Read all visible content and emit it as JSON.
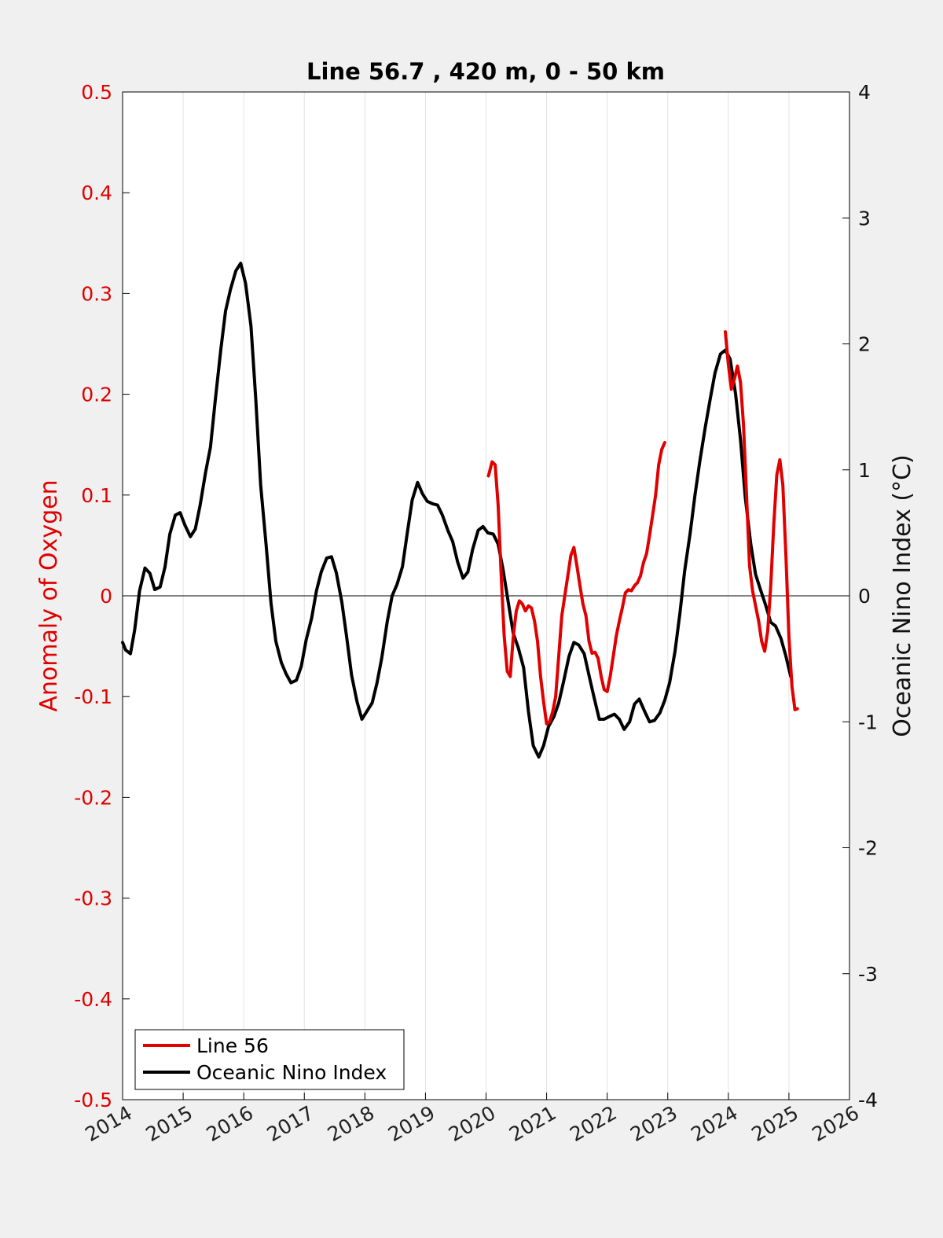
{
  "chart_data": {
    "type": "line",
    "title": "Line 56.7 , 420 m, 0 - 50 km",
    "xlim": [
      2014,
      2026
    ],
    "x_ticks": [
      "2014",
      "2015",
      "2016",
      "2017",
      "2018",
      "2019",
      "2020",
      "2021",
      "2022",
      "2023",
      "2024",
      "2025",
      "2026"
    ],
    "y_left": {
      "label": "Anomaly of Oxygen",
      "lim": [
        -0.5,
        0.5
      ],
      "ticks": [
        "-0.5",
        "-0.4",
        "-0.3",
        "-0.2",
        "-0.1",
        "0",
        "0.1",
        "0.2",
        "0.3",
        "0.4",
        "0.5"
      ],
      "color": "#e00000"
    },
    "y_right": {
      "label": "Oceanic Nino Index (°C)",
      "lim": [
        -4,
        4
      ],
      "ticks": [
        "-4",
        "-3",
        "-2",
        "-1",
        "0",
        "1",
        "2",
        "3",
        "4"
      ],
      "color": "#111111"
    },
    "grid": "vertical",
    "zero_line": true,
    "legend": {
      "placement": "bottom-left",
      "entries": [
        "Line 56",
        "Oceanic Nino Index"
      ]
    },
    "series": [
      {
        "name": "Oceanic Nino Index",
        "axis": "right",
        "color": "#000000",
        "segments": [
          [
            [
              2014.0,
              -0.37
            ],
            [
              2014.05,
              -0.43
            ],
            [
              2014.13,
              -0.46
            ],
            [
              2014.2,
              -0.27
            ],
            [
              2014.28,
              0.04
            ],
            [
              2014.37,
              0.22
            ],
            [
              2014.45,
              0.18
            ],
            [
              2014.53,
              0.05
            ],
            [
              2014.62,
              0.07
            ],
            [
              2014.7,
              0.23
            ],
            [
              2014.78,
              0.49
            ],
            [
              2014.87,
              0.64
            ],
            [
              2014.95,
              0.66
            ],
            [
              2015.03,
              0.56
            ],
            [
              2015.12,
              0.47
            ],
            [
              2015.2,
              0.53
            ],
            [
              2015.28,
              0.72
            ],
            [
              2015.37,
              0.98
            ],
            [
              2015.45,
              1.18
            ],
            [
              2015.53,
              1.55
            ],
            [
              2015.62,
              1.95
            ],
            [
              2015.7,
              2.26
            ],
            [
              2015.78,
              2.43
            ],
            [
              2015.87,
              2.58
            ],
            [
              2015.95,
              2.64
            ],
            [
              2016.03,
              2.48
            ],
            [
              2016.12,
              2.14
            ],
            [
              2016.2,
              1.55
            ],
            [
              2016.28,
              0.88
            ],
            [
              2016.37,
              0.4
            ],
            [
              2016.45,
              -0.06
            ],
            [
              2016.53,
              -0.36
            ],
            [
              2016.62,
              -0.53
            ],
            [
              2016.7,
              -0.62
            ],
            [
              2016.78,
              -0.69
            ],
            [
              2016.87,
              -0.67
            ],
            [
              2016.95,
              -0.56
            ],
            [
              2017.03,
              -0.35
            ],
            [
              2017.12,
              -0.18
            ],
            [
              2017.2,
              0.04
            ],
            [
              2017.28,
              0.19
            ],
            [
              2017.37,
              0.3
            ],
            [
              2017.45,
              0.31
            ],
            [
              2017.53,
              0.18
            ],
            [
              2017.62,
              -0.05
            ],
            [
              2017.7,
              -0.33
            ],
            [
              2017.78,
              -0.63
            ],
            [
              2017.87,
              -0.84
            ],
            [
              2017.95,
              -0.98
            ],
            [
              2018.03,
              -0.92
            ],
            [
              2018.12,
              -0.85
            ],
            [
              2018.2,
              -0.69
            ],
            [
              2018.28,
              -0.49
            ],
            [
              2018.37,
              -0.2
            ],
            [
              2018.45,
              0.0
            ],
            [
              2018.53,
              0.09
            ],
            [
              2018.62,
              0.23
            ],
            [
              2018.7,
              0.5
            ],
            [
              2018.78,
              0.76
            ],
            [
              2018.87,
              0.9
            ],
            [
              2018.95,
              0.81
            ],
            [
              2019.03,
              0.75
            ],
            [
              2019.12,
              0.73
            ],
            [
              2019.2,
              0.72
            ],
            [
              2019.28,
              0.64
            ],
            [
              2019.37,
              0.52
            ],
            [
              2019.45,
              0.43
            ],
            [
              2019.53,
              0.27
            ],
            [
              2019.62,
              0.14
            ],
            [
              2019.7,
              0.19
            ],
            [
              2019.78,
              0.37
            ],
            [
              2019.87,
              0.52
            ],
            [
              2019.95,
              0.55
            ],
            [
              2020.03,
              0.5
            ],
            [
              2020.12,
              0.49
            ],
            [
              2020.2,
              0.41
            ],
            [
              2020.28,
              0.21
            ],
            [
              2020.37,
              -0.06
            ],
            [
              2020.45,
              -0.3
            ],
            [
              2020.53,
              -0.41
            ],
            [
              2020.62,
              -0.57
            ],
            [
              2020.7,
              -0.92
            ],
            [
              2020.78,
              -1.19
            ],
            [
              2020.87,
              -1.28
            ],
            [
              2020.95,
              -1.19
            ],
            [
              2021.03,
              -1.04
            ],
            [
              2021.12,
              -0.96
            ],
            [
              2021.2,
              -0.85
            ],
            [
              2021.28,
              -0.68
            ],
            [
              2021.37,
              -0.48
            ],
            [
              2021.45,
              -0.37
            ],
            [
              2021.53,
              -0.39
            ],
            [
              2021.62,
              -0.46
            ],
            [
              2021.7,
              -0.63
            ],
            [
              2021.78,
              -0.8
            ],
            [
              2021.87,
              -0.98
            ],
            [
              2021.95,
              -0.98
            ],
            [
              2022.03,
              -0.96
            ],
            [
              2022.12,
              -0.94
            ],
            [
              2022.2,
              -0.98
            ],
            [
              2022.28,
              -1.06
            ],
            [
              2022.37,
              -1.0
            ],
            [
              2022.45,
              -0.86
            ],
            [
              2022.53,
              -0.82
            ],
            [
              2022.62,
              -0.92
            ],
            [
              2022.7,
              -1.0
            ],
            [
              2022.78,
              -0.99
            ],
            [
              2022.87,
              -0.93
            ],
            [
              2022.95,
              -0.83
            ],
            [
              2023.03,
              -0.69
            ],
            [
              2023.12,
              -0.44
            ],
            [
              2023.2,
              -0.14
            ],
            [
              2023.28,
              0.2
            ],
            [
              2023.37,
              0.5
            ],
            [
              2023.45,
              0.8
            ],
            [
              2023.53,
              1.07
            ],
            [
              2023.62,
              1.34
            ],
            [
              2023.7,
              1.56
            ],
            [
              2023.78,
              1.77
            ],
            [
              2023.87,
              1.92
            ],
            [
              2023.95,
              1.95
            ],
            [
              2024.03,
              1.88
            ],
            [
              2024.12,
              1.6
            ],
            [
              2024.2,
              1.24
            ],
            [
              2024.28,
              0.78
            ],
            [
              2024.37,
              0.41
            ],
            [
              2024.45,
              0.17
            ],
            [
              2024.53,
              0.05
            ],
            [
              2024.62,
              -0.08
            ],
            [
              2024.7,
              -0.21
            ],
            [
              2024.78,
              -0.24
            ],
            [
              2024.87,
              -0.34
            ],
            [
              2024.95,
              -0.48
            ],
            [
              2025.03,
              -0.64
            ]
          ]
        ]
      },
      {
        "name": "Line 56",
        "axis": "left",
        "color": "#e00000",
        "segments": [
          [
            [
              2020.04,
              0.119
            ],
            [
              2020.1,
              0.133
            ],
            [
              2020.15,
              0.13
            ],
            [
              2020.2,
              0.09
            ],
            [
              2020.25,
              0.02
            ],
            [
              2020.3,
              -0.04
            ],
            [
              2020.35,
              -0.075
            ],
            [
              2020.4,
              -0.08
            ],
            [
              2020.45,
              -0.04
            ],
            [
              2020.5,
              -0.015
            ],
            [
              2020.55,
              -0.005
            ],
            [
              2020.6,
              -0.008
            ],
            [
              2020.65,
              -0.015
            ],
            [
              2020.7,
              -0.01
            ],
            [
              2020.75,
              -0.012
            ],
            [
              2020.8,
              -0.025
            ],
            [
              2020.85,
              -0.045
            ],
            [
              2020.9,
              -0.08
            ],
            [
              2020.95,
              -0.105
            ],
            [
              2021.0,
              -0.127
            ],
            [
              2021.05,
              -0.125
            ],
            [
              2021.1,
              -0.115
            ],
            [
              2021.15,
              -0.1
            ],
            [
              2021.2,
              -0.06
            ],
            [
              2021.25,
              -0.02
            ],
            [
              2021.3,
              0.0
            ],
            [
              2021.35,
              0.02
            ],
            [
              2021.4,
              0.04
            ],
            [
              2021.45,
              0.048
            ],
            [
              2021.5,
              0.03
            ],
            [
              2021.55,
              0.01
            ],
            [
              2021.6,
              -0.008
            ],
            [
              2021.65,
              -0.02
            ],
            [
              2021.7,
              -0.045
            ],
            [
              2021.75,
              -0.057
            ],
            [
              2021.8,
              -0.056
            ],
            [
              2021.85,
              -0.062
            ],
            [
              2021.9,
              -0.08
            ],
            [
              2021.95,
              -0.093
            ],
            [
              2022.0,
              -0.095
            ],
            [
              2022.05,
              -0.08
            ],
            [
              2022.1,
              -0.06
            ],
            [
              2022.15,
              -0.04
            ],
            [
              2022.2,
              -0.025
            ],
            [
              2022.25,
              -0.012
            ],
            [
              2022.3,
              0.003
            ],
            [
              2022.35,
              0.006
            ],
            [
              2022.4,
              0.005
            ],
            [
              2022.45,
              0.01
            ],
            [
              2022.5,
              0.013
            ],
            [
              2022.55,
              0.02
            ],
            [
              2022.6,
              0.033
            ],
            [
              2022.65,
              0.042
            ],
            [
              2022.7,
              0.06
            ],
            [
              2022.75,
              0.08
            ],
            [
              2022.8,
              0.1
            ],
            [
              2022.85,
              0.13
            ],
            [
              2022.9,
              0.145
            ],
            [
              2022.95,
              0.152
            ]
          ],
          [
            [
              2023.95,
              0.262
            ],
            [
              2024.0,
              0.23
            ],
            [
              2024.05,
              0.205
            ],
            [
              2024.1,
              0.215
            ],
            [
              2024.15,
              0.228
            ],
            [
              2024.2,
              0.212
            ],
            [
              2024.25,
              0.17
            ],
            [
              2024.3,
              0.1
            ],
            [
              2024.35,
              0.03
            ],
            [
              2024.4,
              0.005
            ],
            [
              2024.45,
              -0.01
            ],
            [
              2024.5,
              -0.025
            ],
            [
              2024.55,
              -0.045
            ],
            [
              2024.6,
              -0.055
            ],
            [
              2024.65,
              -0.035
            ],
            [
              2024.7,
              0.01
            ],
            [
              2024.75,
              0.07
            ],
            [
              2024.8,
              0.12
            ],
            [
              2024.85,
              0.135
            ],
            [
              2024.9,
              0.11
            ],
            [
              2024.95,
              0.04
            ],
            [
              2025.0,
              -0.04
            ],
            [
              2025.05,
              -0.09
            ],
            [
              2025.1,
              -0.113
            ],
            [
              2025.14,
              -0.112
            ]
          ]
        ]
      }
    ]
  }
}
